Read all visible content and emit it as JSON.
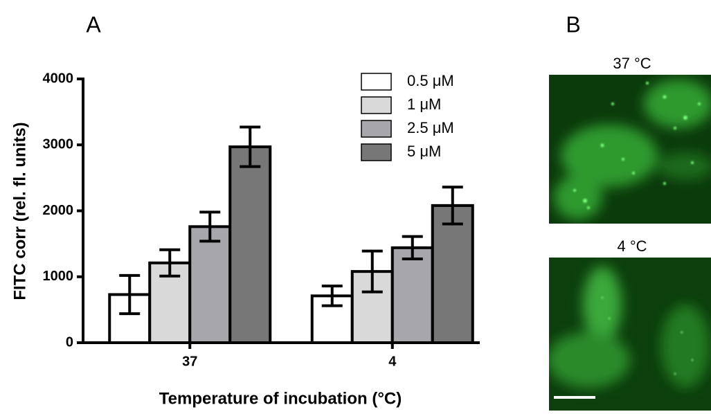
{
  "panels": {
    "a": "A",
    "b": "B",
    "image_labels": [
      "37 °C",
      "4 °C"
    ]
  },
  "chart_data": {
    "type": "bar",
    "ylabel": "FITC corr (rel. fl. units)",
    "xlabel": "Temperature of incubation (°C)",
    "categories": [
      "37",
      "4"
    ],
    "series": [
      {
        "name": "0.5 μM",
        "color": "#ffffff",
        "values": [
          730,
          710
        ],
        "errors": [
          290,
          150
        ]
      },
      {
        "name": "1 μM",
        "color": "#d9d9d9",
        "values": [
          1210,
          1080
        ],
        "errors": [
          200,
          310
        ]
      },
      {
        "name": "2.5 μM",
        "color": "#a7a7ab",
        "values": [
          1760,
          1440
        ],
        "errors": [
          220,
          170
        ]
      },
      {
        "name": "5 μM",
        "color": "#777777",
        "values": [
          2970,
          2080
        ],
        "errors": [
          300,
          280
        ]
      }
    ],
    "ylim": [
      0,
      4000
    ],
    "yticks": [
      0,
      1000,
      2000,
      3000,
      4000
    ],
    "grid": false,
    "legend": "upper right"
  }
}
